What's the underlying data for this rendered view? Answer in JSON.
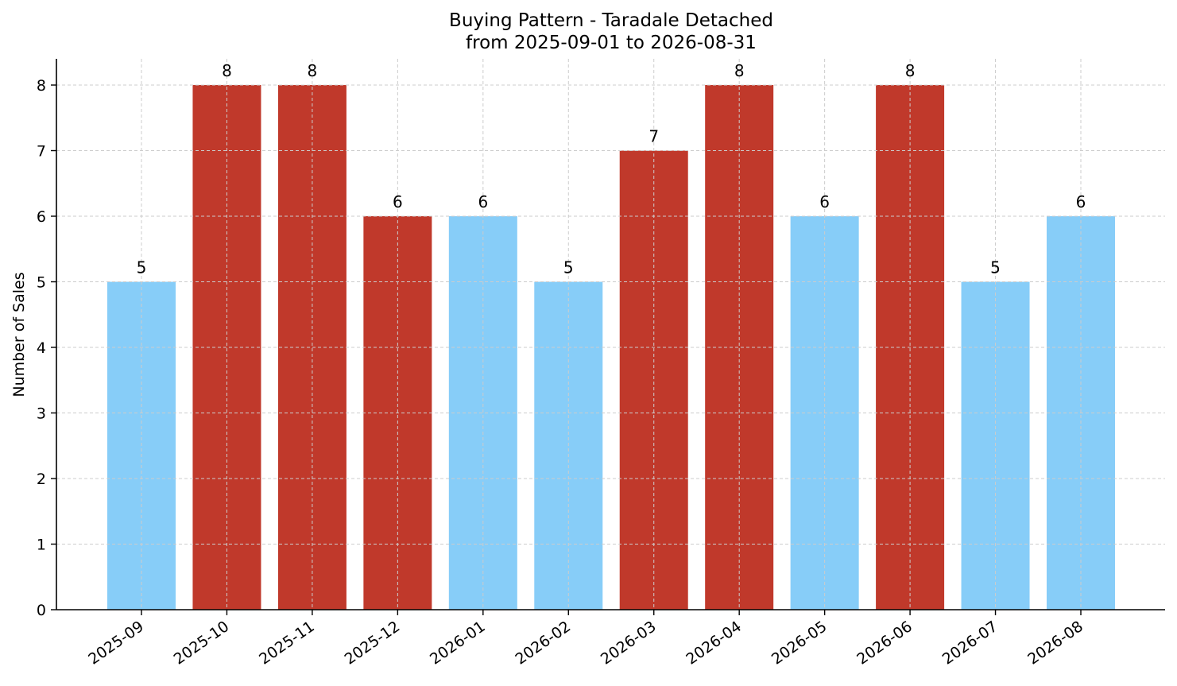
{
  "chart_data": {
    "type": "bar",
    "title": "Buying Pattern - Taradale Detached",
    "subtitle": "from 2025-09-01 to 2026-08-31",
    "xlabel": "",
    "ylabel": "Number of Sales",
    "ylim": [
      0,
      8.4
    ],
    "yticks": [
      0,
      1,
      2,
      3,
      4,
      5,
      6,
      7,
      8
    ],
    "grid": true,
    "categories": [
      "2025-09",
      "2025-10",
      "2025-11",
      "2025-12",
      "2026-01",
      "2026-02",
      "2026-03",
      "2026-04",
      "2026-05",
      "2026-06",
      "2026-07",
      "2026-08"
    ],
    "values": [
      5,
      8,
      8,
      6,
      6,
      5,
      7,
      8,
      6,
      8,
      5,
      6
    ],
    "bar_colors": [
      "#87cdf8",
      "#c0392b",
      "#c0392b",
      "#c0392b",
      "#87cdf8",
      "#87cdf8",
      "#c0392b",
      "#c0392b",
      "#87cdf8",
      "#c0392b",
      "#87cdf8",
      "#87cdf8"
    ]
  }
}
